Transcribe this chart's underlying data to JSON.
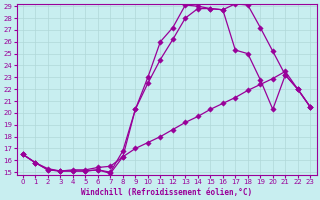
{
  "title": "",
  "xlabel": "Windchill (Refroidissement éolien,°C)",
  "ylabel": "",
  "background_color": "#c8eef0",
  "line_color": "#990099",
  "grid_color": "#b0d8d8",
  "xlim": [
    -0.5,
    23.5
  ],
  "ylim": [
    15,
    29
  ],
  "xticks": [
    0,
    1,
    2,
    3,
    4,
    5,
    6,
    7,
    8,
    9,
    10,
    11,
    12,
    13,
    14,
    15,
    16,
    17,
    18,
    19,
    20,
    21,
    22,
    23
  ],
  "yticks": [
    15,
    16,
    17,
    18,
    19,
    20,
    21,
    22,
    23,
    24,
    25,
    26,
    27,
    28,
    29
  ],
  "line1_x": [
    0,
    1,
    2,
    3,
    4,
    5,
    6,
    7,
    8,
    9,
    10,
    11,
    12,
    13,
    14,
    15,
    16,
    17,
    18,
    19,
    20,
    21,
    22,
    23
  ],
  "line1_y": [
    16.5,
    15.8,
    15.2,
    15.1,
    15.1,
    15.1,
    15.2,
    15.0,
    16.8,
    20.3,
    23.0,
    26.0,
    27.2,
    29.1,
    29.0,
    28.8,
    28.7,
    29.2,
    29.1,
    27.2,
    25.2,
    23.2,
    22.0,
    20.5
  ],
  "line2_x": [
    0,
    1,
    2,
    3,
    4,
    5,
    6,
    7,
    8,
    9,
    10,
    11,
    12,
    13,
    14,
    15,
    16,
    17,
    18,
    19,
    20,
    21,
    22,
    23
  ],
  "line2_y": [
    16.5,
    15.8,
    15.2,
    15.1,
    15.1,
    15.1,
    15.2,
    14.9,
    16.3,
    20.3,
    22.5,
    24.5,
    26.2,
    28.0,
    28.8,
    28.8,
    28.7,
    25.3,
    25.0,
    22.8,
    20.3,
    23.2,
    22.0,
    20.5
  ],
  "line3_x": [
    0,
    1,
    2,
    3,
    4,
    5,
    6,
    7,
    8,
    9,
    10,
    11,
    12,
    13,
    14,
    15,
    16,
    17,
    18,
    19,
    20,
    21,
    22,
    23
  ],
  "line3_y": [
    16.5,
    15.8,
    15.3,
    15.1,
    15.2,
    15.2,
    15.4,
    15.5,
    16.3,
    17.0,
    17.5,
    18.0,
    18.6,
    19.2,
    19.7,
    20.3,
    20.8,
    21.3,
    21.9,
    22.4,
    22.9,
    23.5,
    22.0,
    20.5
  ]
}
